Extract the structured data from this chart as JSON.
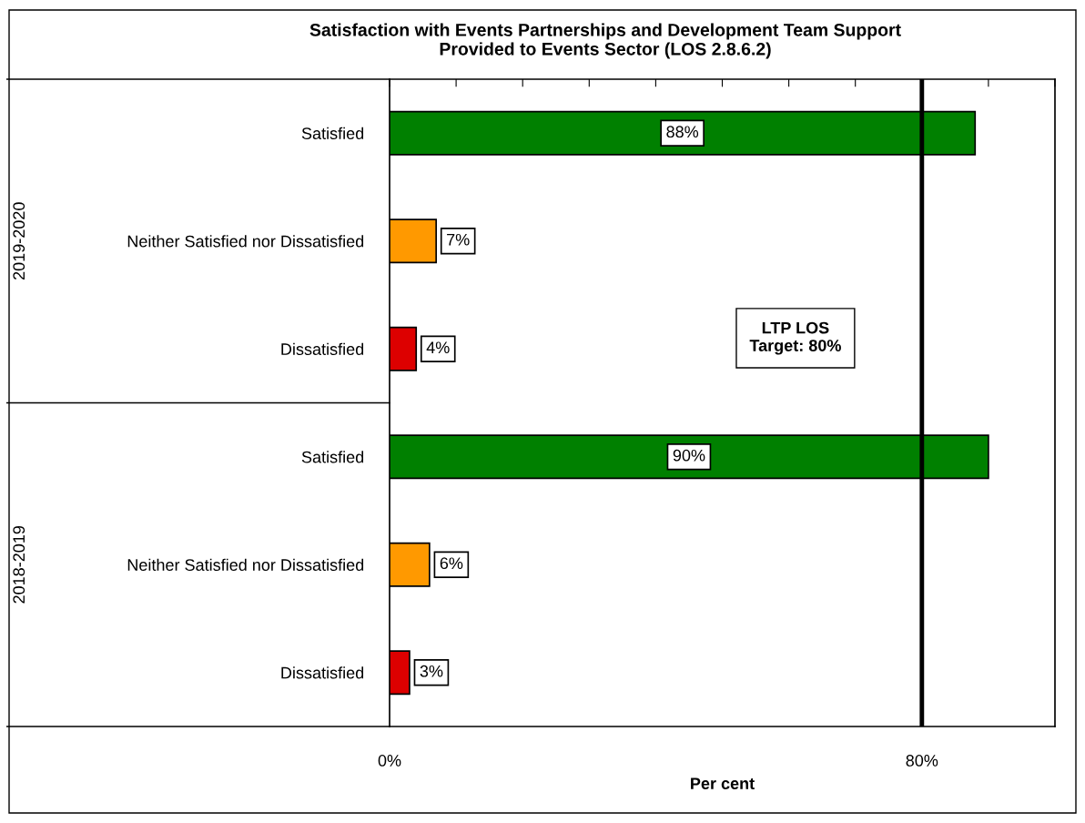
{
  "chart_data": {
    "type": "bar",
    "orientation": "horizontal",
    "title": "Satisfaction with Events Partnerships and Development Team Support\nProvided to Events Sector (LOS 2.8.6.2)",
    "xlabel": "Per cent",
    "categories": [
      "Satisfied",
      "Neither Satisfied nor Dissatisfied",
      "Dissatisfied",
      "Satisfied",
      "Neither Satisfied nor Dissatisfied",
      "Dissatisfied"
    ],
    "values": [
      88,
      7,
      4,
      90,
      6,
      3
    ],
    "value_labels": [
      "88%",
      "7%",
      "4%",
      "90%",
      "6%",
      "3%"
    ],
    "colors": [
      "#008000",
      "#ff9900",
      "#dd0000",
      "#008000",
      "#ff9900",
      "#dd0000"
    ],
    "xlim": [
      0,
      100
    ],
    "xticks": [
      {
        "value": 0,
        "label": "0%"
      },
      {
        "value": 10,
        "label": null
      },
      {
        "value": 20,
        "label": null
      },
      {
        "value": 30,
        "label": null
      },
      {
        "value": 40,
        "label": null
      },
      {
        "value": 50,
        "label": null
      },
      {
        "value": 60,
        "label": null
      },
      {
        "value": 70,
        "label": null
      },
      {
        "value": 80,
        "label": "80%"
      },
      {
        "value": 90,
        "label": null
      },
      {
        "value": 100,
        "label": null
      }
    ],
    "ref_lines": [
      {
        "axis": "x",
        "value": 80,
        "label": "LTP LOS\nTarget: 80%",
        "color": "#000000"
      }
    ],
    "annotations": [
      "2019-2020",
      "2018-2019"
    ],
    "grid": false
  }
}
